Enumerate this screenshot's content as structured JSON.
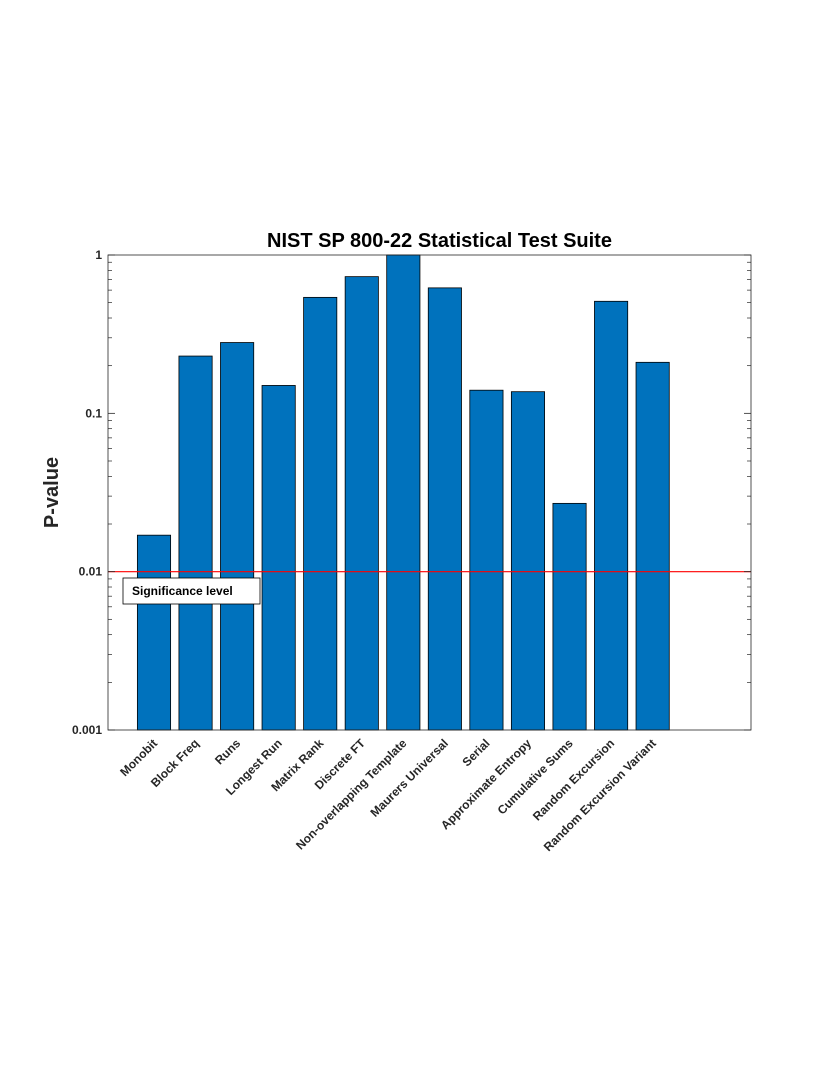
{
  "chart_data": {
    "type": "bar",
    "title": "NIST SP 800-22 Statistical Test Suite",
    "xlabel": "",
    "ylabel": "P-value",
    "yscale": "log",
    "ylim": [
      0.001,
      1
    ],
    "yticks": [
      {
        "value": 0.001,
        "label": "0.001"
      },
      {
        "value": 0.01,
        "label": "0.01"
      },
      {
        "value": 0.1,
        "label": "0.1"
      },
      {
        "value": 1,
        "label": "1"
      }
    ],
    "categories": [
      "Monobit",
      "Block Freq",
      "Runs",
      "Longest Run",
      "Matrix Rank",
      "Discrete FT",
      "Non-overlapping Template",
      "Maurers Universal",
      "Serial",
      "Approximate Entropy",
      "Cumulative Sums",
      "Random Excursion",
      "Random Excursion Variant"
    ],
    "values": [
      0.017,
      0.23,
      0.28,
      0.15,
      0.54,
      0.73,
      1.0,
      0.62,
      0.14,
      0.137,
      0.027,
      0.51,
      0.21
    ],
    "reference_line": {
      "value": 0.01,
      "label": "Significance level",
      "color": "#ff0000"
    },
    "bar_color": "#0072bd",
    "grid": false
  }
}
